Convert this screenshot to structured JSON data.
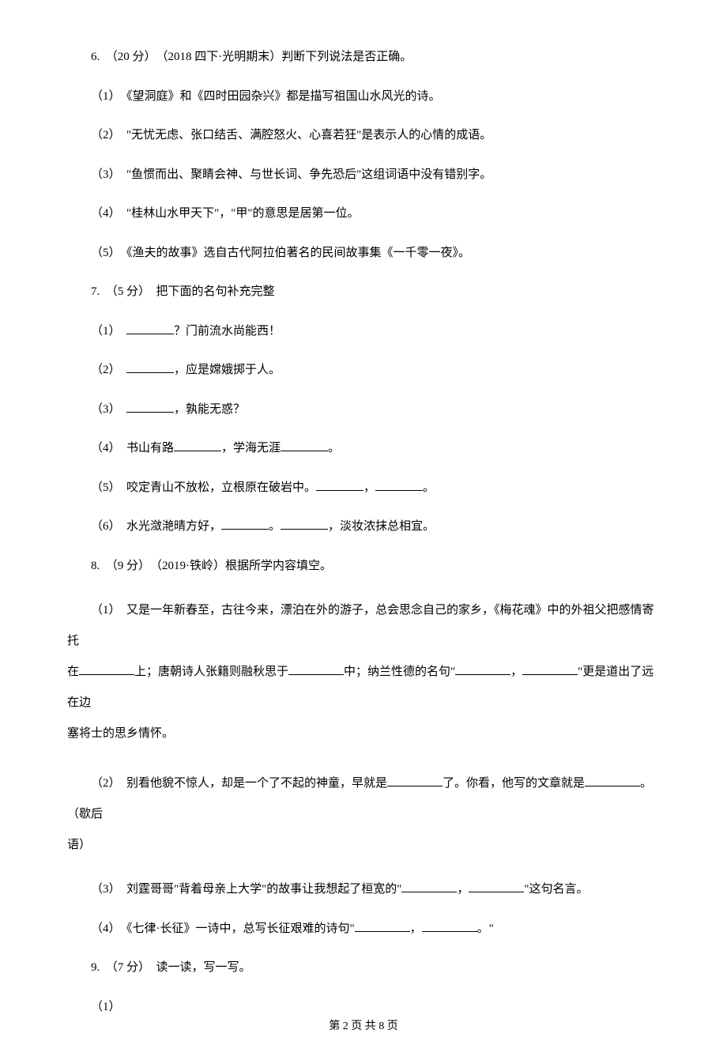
{
  "q6": {
    "header": "6.　（20 分）　（2018 四下·光明期末）判断下列说法是否正确。",
    "items": [
      "（1）　《望洞庭》和《四时田园杂兴》都是描写祖国山水风光的诗。",
      "（2）　\"无忧无虑、张口结舌、满腔怒火、心喜若狂\"是表示人的心情的成语。",
      "（3）　\"鱼惯而出、聚睛会神、与世长词、争先恐后\"这组词语中没有错别字。",
      "（4）　\"桂林山水甲天下\"，\"甲\"的意思是居第一位。",
      "（5）　《渔夫的故事》选自古代阿拉伯著名的民间故事集《一千零一夜》。"
    ]
  },
  "q7": {
    "header": "7.　（5 分）　把下面的名句补充完整",
    "s1_before": "（1）　",
    "s1_after": "？门前流水尚能西！",
    "s2_before": "（2）　",
    "s2_after": "，应是嫦娥掷于人。",
    "s3_before": "（3）　",
    "s3_after": "，孰能无惑？",
    "s4_a": "（4）　书山有路",
    "s4_b": "，学海无涯",
    "s4_c": "。",
    "s5_a": "（5）　咬定青山不放松，立根原在破岩中。",
    "s5_b": "，",
    "s5_c": "。",
    "s6_a": "（6）　水光潋滟晴方好，",
    "s6_b": "。",
    "s6_c": "，淡妆浓抹总相宜。"
  },
  "q8": {
    "header": "8.　（9 分）　（2019·铁岭）根据所学内容填空。",
    "s1_a": "（1）　又是一年新春至，古往今来，漂泊在外的游子，总会思念自己的家乡，《梅花魂》中的外祖父把感情寄托",
    "s1_b": "在",
    "s1_c": "上；唐朝诗人张籍则融秋思于",
    "s1_d": "中；纳兰性德的名句\"",
    "s1_e": "，",
    "s1_f": "\"更是道出了远在边",
    "s1_g": "塞将士的思乡情怀。",
    "s2_a": "（2）　别看他貌不惊人，却是一个了不起的神童，早就是",
    "s2_b": "了。你看，他写的文章就是",
    "s2_c": "。（歇后",
    "s2_d": "语）",
    "s3_a": "（3）　刘霆哥哥\"背着母亲上大学\"的故事让我想起了桓宽的\"",
    "s3_b": "，",
    "s3_c": "\"这句名言。",
    "s4_a": "（4）　《七律·长征》一诗中，总写长征艰难的诗句\"",
    "s4_b": "，",
    "s4_c": "。\""
  },
  "q9": {
    "header": "9.　（7 分）　读一读，写一写。",
    "s1": "（1）"
  },
  "footer": "第 2 页 共 8 页"
}
